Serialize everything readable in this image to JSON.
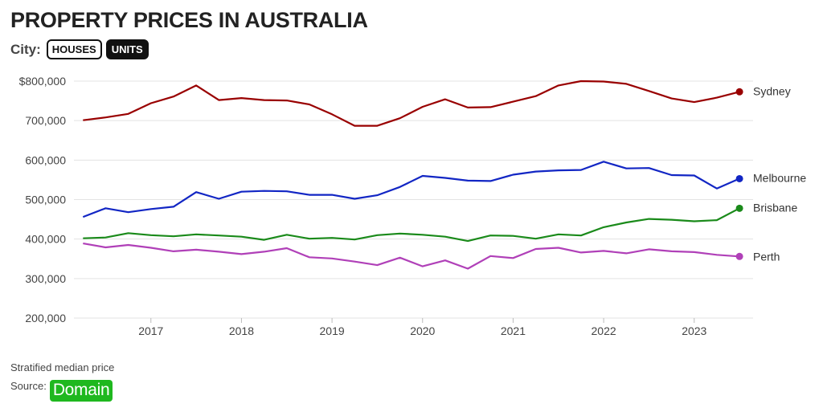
{
  "title": "PROPERTY PRICES IN AUSTRALIA",
  "controls": {
    "label": "City:",
    "houses": "HOUSES",
    "units": "UNITS",
    "active": "units"
  },
  "footer": {
    "note": "Stratified median price",
    "source_label": "Source:",
    "source_name": "Domain"
  },
  "colors": {
    "sydney": "#990000",
    "melbourne": "#1226c4",
    "brisbane": "#1a8a1a",
    "perth": "#b040b8",
    "domain": "#1fb81f"
  },
  "chart_data": {
    "type": "line",
    "ylim": [
      200000,
      800000
    ],
    "yticks": [
      200000,
      300000,
      400000,
      500000,
      600000,
      700000,
      800000
    ],
    "ytick_labels": [
      "200,000",
      "300,000",
      "400,000",
      "500,000",
      "600,000",
      "700,000",
      "$800,000"
    ],
    "xticks": [
      2017,
      2018,
      2019,
      2020,
      2021,
      2022,
      2023
    ],
    "xlim": [
      2016.15,
      2023.65
    ],
    "grid": "horizontal",
    "x": [
      2016.25,
      2016.5,
      2016.75,
      2017.0,
      2017.25,
      2017.5,
      2017.75,
      2018.0,
      2018.25,
      2018.5,
      2018.75,
      2019.0,
      2019.25,
      2019.5,
      2019.75,
      2020.0,
      2020.25,
      2020.5,
      2020.75,
      2021.0,
      2021.25,
      2021.5,
      2021.75,
      2022.0,
      2022.25,
      2022.5,
      2022.75,
      2023.0,
      2023.25,
      2023.5
    ],
    "series": [
      {
        "name": "Sydney",
        "key": "sydney",
        "values": [
          701000,
          708000,
          717000,
          744000,
          761000,
          789000,
          752000,
          757000,
          752000,
          751000,
          741000,
          716000,
          687000,
          687000,
          706000,
          735000,
          754000,
          733000,
          734000,
          748000,
          762000,
          789000,
          800000,
          799000,
          793000,
          775000,
          756000,
          747000,
          758000,
          773000
        ]
      },
      {
        "name": "Melbourne",
        "key": "melbourne",
        "values": [
          456000,
          478000,
          468000,
          476000,
          482000,
          519000,
          502000,
          520000,
          522000,
          521000,
          512000,
          512000,
          502000,
          511000,
          532000,
          560000,
          555000,
          548000,
          547000,
          563000,
          571000,
          574000,
          575000,
          596000,
          579000,
          580000,
          562000,
          561000,
          528000,
          553000
        ]
      },
      {
        "name": "Brisbane",
        "key": "brisbane",
        "values": [
          402000,
          404000,
          415000,
          410000,
          407000,
          412000,
          409000,
          406000,
          398000,
          411000,
          401000,
          403000,
          399000,
          410000,
          414000,
          411000,
          406000,
          395000,
          409000,
          408000,
          401000,
          412000,
          409000,
          430000,
          442000,
          451000,
          449000,
          445000,
          448000,
          478000
        ]
      },
      {
        "name": "Perth",
        "key": "perth",
        "values": [
          389000,
          379000,
          385000,
          378000,
          369000,
          373000,
          368000,
          362000,
          368000,
          377000,
          354000,
          351000,
          343000,
          334000,
          353000,
          331000,
          346000,
          325000,
          357000,
          352000,
          375000,
          378000,
          366000,
          370000,
          364000,
          374000,
          369000,
          367000,
          360000,
          356000
        ]
      }
    ]
  }
}
